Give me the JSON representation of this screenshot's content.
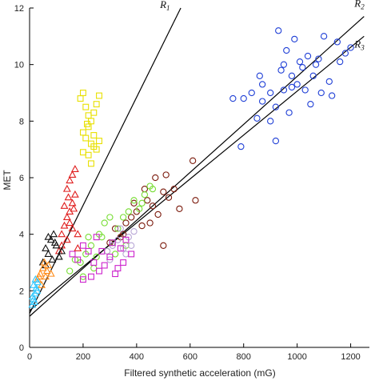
{
  "chart_data": {
    "type": "scatter",
    "title": "",
    "xlabel": "Filtered synthetic acceleration (mG)",
    "ylabel": "MET",
    "xlim": [
      0,
      1270
    ],
    "ylim": [
      0,
      12
    ],
    "xticks": [
      0,
      200,
      400,
      600,
      800,
      1000,
      1200
    ],
    "yticks": [
      0,
      2,
      4,
      6,
      8,
      10,
      12
    ],
    "grid": false,
    "legend": "none",
    "regression_lines": [
      {
        "label": "R",
        "sub": "1",
        "x0": 0,
        "y0": 1.2,
        "x1": 565,
        "y1": 12
      },
      {
        "label": "R",
        "sub": "2",
        "x0": 0,
        "y0": 1.1,
        "x1": 1250,
        "y1": 11.7
      },
      {
        "label": "R",
        "sub": "3",
        "x0": 0,
        "y0": 1.3,
        "x1": 1250,
        "y1": 11.0
      }
    ],
    "series": [
      {
        "marker": "circle",
        "color": "#1f3fd6",
        "points": [
          [
            800,
            8.8
          ],
          [
            830,
            9.0
          ],
          [
            870,
            8.7
          ],
          [
            900,
            9.0
          ],
          [
            920,
            8.5
          ],
          [
            950,
            9.1
          ],
          [
            980,
            9.2
          ],
          [
            1000,
            9.3
          ],
          [
            1030,
            9.1
          ],
          [
            1060,
            9.6
          ],
          [
            1080,
            10.2
          ],
          [
            1100,
            11.0
          ],
          [
            1120,
            9.4
          ],
          [
            1150,
            10.8
          ],
          [
            1180,
            10.4
          ],
          [
            1200,
            10.6
          ],
          [
            930,
            11.2
          ],
          [
            960,
            10.5
          ],
          [
            990,
            10.9
          ],
          [
            1010,
            10.1
          ],
          [
            860,
            9.6
          ],
          [
            940,
            9.8
          ],
          [
            970,
            8.3
          ],
          [
            850,
            8.1
          ],
          [
            900,
            8.0
          ],
          [
            1020,
            9.9
          ],
          [
            1070,
            10.0
          ],
          [
            1090,
            9.0
          ],
          [
            1130,
            8.9
          ],
          [
            1050,
            8.6
          ],
          [
            760,
            8.8
          ],
          [
            790,
            7.1
          ],
          [
            920,
            7.3
          ],
          [
            1160,
            10.1
          ],
          [
            980,
            9.6
          ],
          [
            1040,
            10.3
          ],
          [
            870,
            9.3
          ],
          [
            950,
            10.0
          ]
        ]
      },
      {
        "marker": "circle",
        "color": "#7b1a0c",
        "points": [
          [
            320,
            4.2
          ],
          [
            340,
            3.9
          ],
          [
            360,
            4.4
          ],
          [
            380,
            4.6
          ],
          [
            400,
            4.8
          ],
          [
            420,
            4.3
          ],
          [
            440,
            5.2
          ],
          [
            460,
            5.0
          ],
          [
            480,
            4.7
          ],
          [
            500,
            5.5
          ],
          [
            520,
            5.3
          ],
          [
            540,
            5.6
          ],
          [
            470,
            6.0
          ],
          [
            510,
            6.1
          ],
          [
            610,
            6.6
          ],
          [
            620,
            5.2
          ],
          [
            560,
            4.9
          ],
          [
            430,
            5.6
          ],
          [
            390,
            5.1
          ],
          [
            350,
            4.0
          ],
          [
            300,
            3.7
          ],
          [
            500,
            3.6
          ],
          [
            450,
            4.4
          ]
        ]
      },
      {
        "marker": "circle",
        "color": "#77dd33",
        "points": [
          [
            190,
            3.0
          ],
          [
            210,
            3.3
          ],
          [
            230,
            3.6
          ],
          [
            250,
            3.2
          ],
          [
            270,
            3.9
          ],
          [
            290,
            3.4
          ],
          [
            310,
            3.7
          ],
          [
            330,
            4.2
          ],
          [
            350,
            4.6
          ],
          [
            370,
            4.8
          ],
          [
            390,
            5.2
          ],
          [
            410,
            4.9
          ],
          [
            430,
            5.4
          ],
          [
            450,
            5.7
          ],
          [
            460,
            5.6
          ],
          [
            420,
            5.1
          ],
          [
            280,
            4.4
          ],
          [
            240,
            2.8
          ],
          [
            200,
            2.5
          ],
          [
            260,
            4.0
          ],
          [
            320,
            3.3
          ],
          [
            360,
            3.6
          ],
          [
            300,
            4.6
          ],
          [
            220,
            3.9
          ],
          [
            150,
            2.7
          ],
          [
            170,
            3.1
          ]
        ]
      },
      {
        "marker": "circle",
        "color": "#b8a6d6",
        "points": [
          [
            290,
            3.4
          ],
          [
            310,
            3.6
          ],
          [
            330,
            3.8
          ],
          [
            350,
            3.5
          ],
          [
            370,
            3.9
          ],
          [
            390,
            4.1
          ],
          [
            340,
            4.2
          ],
          [
            300,
            3.1
          ],
          [
            360,
            3.3
          ],
          [
            380,
            3.6
          ]
        ]
      },
      {
        "marker": "square",
        "color": "#cc22cc",
        "points": [
          [
            160,
            3.3
          ],
          [
            180,
            3.1
          ],
          [
            200,
            3.6
          ],
          [
            220,
            3.4
          ],
          [
            240,
            3.0
          ],
          [
            260,
            2.7
          ],
          [
            280,
            2.9
          ],
          [
            300,
            3.2
          ],
          [
            320,
            2.6
          ],
          [
            340,
            3.5
          ],
          [
            360,
            3.8
          ],
          [
            380,
            3.3
          ],
          [
            330,
            2.8
          ],
          [
            350,
            3.0
          ],
          [
            310,
            3.7
          ],
          [
            250,
            3.9
          ],
          [
            270,
            3.4
          ],
          [
            230,
            2.5
          ],
          [
            200,
            2.4
          ]
        ]
      },
      {
        "marker": "square",
        "color": "#e8e000",
        "points": [
          [
            190,
            8.8
          ],
          [
            200,
            9.0
          ],
          [
            210,
            8.5
          ],
          [
            220,
            8.2
          ],
          [
            230,
            8.0
          ],
          [
            240,
            8.3
          ],
          [
            250,
            8.6
          ],
          [
            260,
            8.9
          ],
          [
            200,
            7.6
          ],
          [
            210,
            7.4
          ],
          [
            220,
            7.8
          ],
          [
            230,
            7.2
          ],
          [
            240,
            7.5
          ],
          [
            250,
            7.0
          ],
          [
            260,
            7.3
          ],
          [
            220,
            6.8
          ],
          [
            230,
            6.5
          ],
          [
            240,
            7.1
          ],
          [
            200,
            6.9
          ],
          [
            215,
            7.9
          ]
        ]
      },
      {
        "marker": "triangle",
        "color": "#e01e1e",
        "points": [
          [
            120,
            4.0
          ],
          [
            130,
            4.3
          ],
          [
            140,
            4.6
          ],
          [
            150,
            4.8
          ],
          [
            160,
            5.1
          ],
          [
            170,
            5.4
          ],
          [
            130,
            5.0
          ],
          [
            140,
            5.6
          ],
          [
            150,
            5.9
          ],
          [
            160,
            6.1
          ],
          [
            170,
            6.3
          ],
          [
            140,
            3.8
          ],
          [
            160,
            4.2
          ],
          [
            180,
            4.0
          ],
          [
            120,
            3.6
          ],
          [
            110,
            3.4
          ],
          [
            150,
            4.4
          ],
          [
            180,
            3.5
          ],
          [
            165,
            4.9
          ],
          [
            145,
            5.3
          ]
        ]
      },
      {
        "marker": "triangle",
        "color": "#111111",
        "points": [
          [
            50,
            3.0
          ],
          [
            60,
            3.5
          ],
          [
            70,
            3.3
          ],
          [
            80,
            3.8
          ],
          [
            90,
            4.0
          ],
          [
            100,
            3.6
          ],
          [
            110,
            3.2
          ],
          [
            120,
            3.4
          ],
          [
            60,
            2.9
          ],
          [
            70,
            3.9
          ],
          [
            85,
            3.1
          ],
          [
            95,
            3.7
          ]
        ]
      },
      {
        "marker": "triangle",
        "color": "#ff8c1a",
        "points": [
          [
            30,
            2.4
          ],
          [
            40,
            2.6
          ],
          [
            50,
            2.8
          ],
          [
            60,
            2.5
          ],
          [
            70,
            2.9
          ],
          [
            55,
            3.0
          ],
          [
            45,
            2.2
          ],
          [
            65,
            2.7
          ],
          [
            35,
            2.5
          ],
          [
            80,
            2.6
          ]
        ]
      },
      {
        "marker": "triangle",
        "color": "#33c8ff",
        "points": [
          [
            10,
            1.5
          ],
          [
            15,
            1.7
          ],
          [
            20,
            1.9
          ],
          [
            25,
            2.1
          ],
          [
            30,
            2.3
          ],
          [
            18,
            1.6
          ],
          [
            22,
            2.4
          ],
          [
            12,
            1.8
          ],
          [
            28,
            2.0
          ],
          [
            15,
            2.2
          ]
        ]
      }
    ]
  }
}
